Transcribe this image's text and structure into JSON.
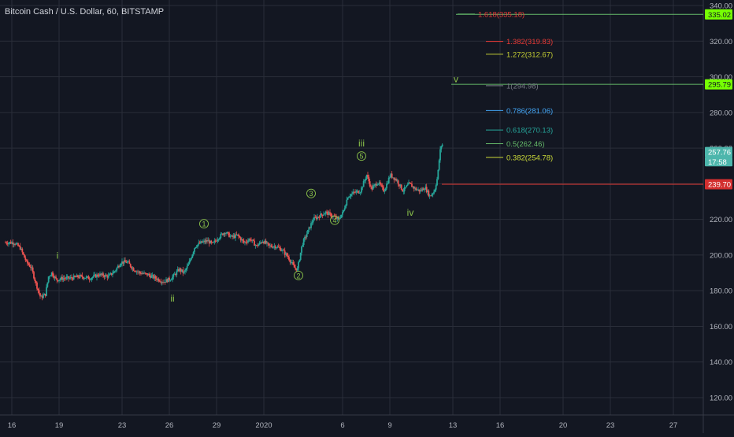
{
  "header": {
    "title": "Bitcoin Cash / U.S. Dollar, 60, BITSTAMP"
  },
  "colors": {
    "background": "#131722",
    "grid": "#2a2e39",
    "axis_text": "#b2b5be",
    "candle_up": "#26a69a",
    "candle_down": "#ef5350",
    "wave_label": "#8bc34a",
    "fib_red": "#e53935",
    "fib_olive": "#c0ca33",
    "fib_green": "#66bb6a",
    "fib_gray": "#787b86",
    "fib_blue": "#42a5f5",
    "fib_teal": "#26a69a",
    "fib_yellow": "#cddc39",
    "tag_green_bright": "#76ff03",
    "tag_teal": "#4db6ac",
    "tag_red": "#d32f2f"
  },
  "chart_data": {
    "type": "candlestick",
    "title": "Bitcoin Cash / U.S. Dollar, 60, BITSTAMP",
    "xlabel": "",
    "ylabel": "",
    "grid": true,
    "ylim": [
      110,
      342
    ],
    "xlim": [
      15.6,
      28.0
    ],
    "y_ticks": [
      "120.00",
      "140.00",
      "160.00",
      "180.00",
      "200.00",
      "220.00",
      "240.00",
      "260.00",
      "280.00",
      "300.00",
      "320.00",
      "340.00"
    ],
    "x_ticks": [
      {
        "x": 16,
        "label": "16"
      },
      {
        "x": 19,
        "label": "19"
      },
      {
        "x": 23,
        "label": "23"
      },
      {
        "x": 26,
        "label": "26"
      },
      {
        "x": 29,
        "label": "29"
      },
      {
        "x": 32,
        "label": "2020"
      },
      {
        "x": 37,
        "label": "6"
      },
      {
        "x": 40,
        "label": "9"
      },
      {
        "x": 44,
        "label": "13"
      },
      {
        "x": 47,
        "label": "16"
      },
      {
        "x": 51,
        "label": "20"
      },
      {
        "x": 54,
        "label": "23"
      },
      {
        "x": 58,
        "label": "27"
      }
    ],
    "x_note": "x values are days on a continuous calendar counted from the 16th of the first month; 32 = 1 Jan 2020",
    "price_path": [
      [
        15.6,
        207
      ],
      [
        16.2,
        207
      ],
      [
        16.6,
        204
      ],
      [
        17.0,
        196
      ],
      [
        17.3,
        193
      ],
      [
        17.6,
        184
      ],
      [
        17.9,
        176
      ],
      [
        18.2,
        178
      ],
      [
        18.4,
        188
      ],
      [
        18.6,
        190
      ],
      [
        18.9,
        186
      ],
      [
        19.3,
        187
      ],
      [
        19.8,
        187
      ],
      [
        20.4,
        188
      ],
      [
        21.0,
        187
      ],
      [
        21.6,
        189
      ],
      [
        22.2,
        188
      ],
      [
        22.6,
        191
      ],
      [
        23.0,
        196
      ],
      [
        23.4,
        196
      ],
      [
        23.8,
        192
      ],
      [
        24.2,
        190
      ],
      [
        24.7,
        189
      ],
      [
        25.2,
        187
      ],
      [
        25.7,
        185
      ],
      [
        26.2,
        187
      ],
      [
        26.7,
        192
      ],
      [
        27.0,
        190
      ],
      [
        27.3,
        195
      ],
      [
        27.7,
        205
      ],
      [
        28.1,
        207
      ],
      [
        28.5,
        208
      ],
      [
        28.8,
        206
      ],
      [
        29.2,
        210
      ],
      [
        29.6,
        213
      ],
      [
        30.0,
        210
      ],
      [
        30.4,
        211
      ],
      [
        30.8,
        207
      ],
      [
        31.2,
        209
      ],
      [
        31.6,
        205
      ],
      [
        32.0,
        208
      ],
      [
        32.4,
        205
      ],
      [
        32.8,
        205
      ],
      [
        33.2,
        203
      ],
      [
        33.6,
        199
      ],
      [
        34.0,
        193
      ],
      [
        34.2,
        192
      ],
      [
        34.5,
        206
      ],
      [
        34.8,
        212
      ],
      [
        35.2,
        220
      ],
      [
        35.6,
        222
      ],
      [
        36.0,
        224
      ],
      [
        36.4,
        222
      ],
      [
        36.8,
        220
      ],
      [
        37.1,
        224
      ],
      [
        37.4,
        233
      ],
      [
        37.8,
        235
      ],
      [
        38.2,
        236
      ],
      [
        38.6,
        245
      ],
      [
        38.9,
        237
      ],
      [
        39.3,
        241
      ],
      [
        39.7,
        236
      ],
      [
        40.1,
        245
      ],
      [
        40.5,
        242
      ],
      [
        40.9,
        236
      ],
      [
        41.3,
        240
      ],
      [
        41.7,
        237
      ],
      [
        42.0,
        236
      ],
      [
        42.3,
        238
      ],
      [
        42.6,
        233
      ],
      [
        42.9,
        236
      ],
      [
        43.1,
        244
      ],
      [
        43.25,
        258
      ],
      [
        43.35,
        262
      ]
    ],
    "wave_labels": [
      {
        "text": "i",
        "x": 18.9,
        "y": 198
      },
      {
        "text": "ii",
        "x": 26.2,
        "y": 174
      },
      {
        "text": "1",
        "x": 28.2,
        "y": 216,
        "circled": true
      },
      {
        "text": "2",
        "x": 34.2,
        "y": 187,
        "circled": true
      },
      {
        "text": "3",
        "x": 35.0,
        "y": 233,
        "circled": true
      },
      {
        "text": "4",
        "x": 36.5,
        "y": 218,
        "circled": true
      },
      {
        "text": "5",
        "x": 38.2,
        "y": 254,
        "circled": true
      },
      {
        "text": "iii",
        "x": 38.2,
        "y": 261
      },
      {
        "text": "iv",
        "x": 41.3,
        "y": 222
      },
      {
        "text": "v",
        "x": 44.2,
        "y": 297
      }
    ],
    "fib_levels": [
      {
        "label": "1.618(335.18)",
        "value": 335.18,
        "x_start": 44.3,
        "color_key": "fib_green",
        "text_color_key": "fib_red"
      },
      {
        "label": "1.382(319.83)",
        "value": 319.83,
        "x_start": 46.1,
        "color_key": "fib_red",
        "text_color_key": "fib_red"
      },
      {
        "label": "1.272(312.67)",
        "value": 312.67,
        "x_start": 46.1,
        "color_key": "fib_olive",
        "text_color_key": "fib_olive"
      },
      {
        "label": "1(294.98)",
        "value": 294.98,
        "x_start": 46.1,
        "color_key": "fib_gray",
        "text_color_key": "fib_gray"
      },
      {
        "label": "0.786(281.06)",
        "value": 281.06,
        "x_start": 46.1,
        "color_key": "fib_blue",
        "text_color_key": "fib_blue"
      },
      {
        "label": "0.618(270.13)",
        "value": 270.13,
        "x_start": 46.1,
        "color_key": "fib_teal",
        "text_color_key": "fib_teal"
      },
      {
        "label": "0.5(262.46)",
        "value": 262.46,
        "x_start": 46.1,
        "color_key": "fib_green",
        "text_color_key": "fib_green"
      },
      {
        "label": "0.382(254.78)",
        "value": 254.78,
        "x_start": 46.1,
        "color_key": "fib_yellow",
        "text_color_key": "fib_yellow"
      }
    ],
    "horizontal_lines": [
      {
        "value": 335.02,
        "x_start": 44.2,
        "color_key": "fib_green"
      },
      {
        "value": 295.79,
        "x_start": 43.9,
        "color_key": "fib_green"
      },
      {
        "value": 239.7,
        "x_start": 43.3,
        "color_key": "fib_red"
      }
    ],
    "price_tags": [
      {
        "text": "335.02",
        "value": 335.02,
        "bg_key": "tag_green_bright",
        "fg": "#131722"
      },
      {
        "text": "295.79",
        "value": 295.79,
        "bg_key": "tag_green_bright",
        "fg": "#131722"
      },
      {
        "text": "257.76",
        "value": 257.76,
        "bg_key": "tag_teal",
        "fg": "#ffffff"
      },
      {
        "text": "17:58",
        "value": 252.4,
        "bg_key": "tag_teal",
        "fg": "#ffffff",
        "small": true
      },
      {
        "text": "239.70",
        "value": 239.7,
        "bg_key": "tag_red",
        "fg": "#ffffff"
      }
    ]
  }
}
